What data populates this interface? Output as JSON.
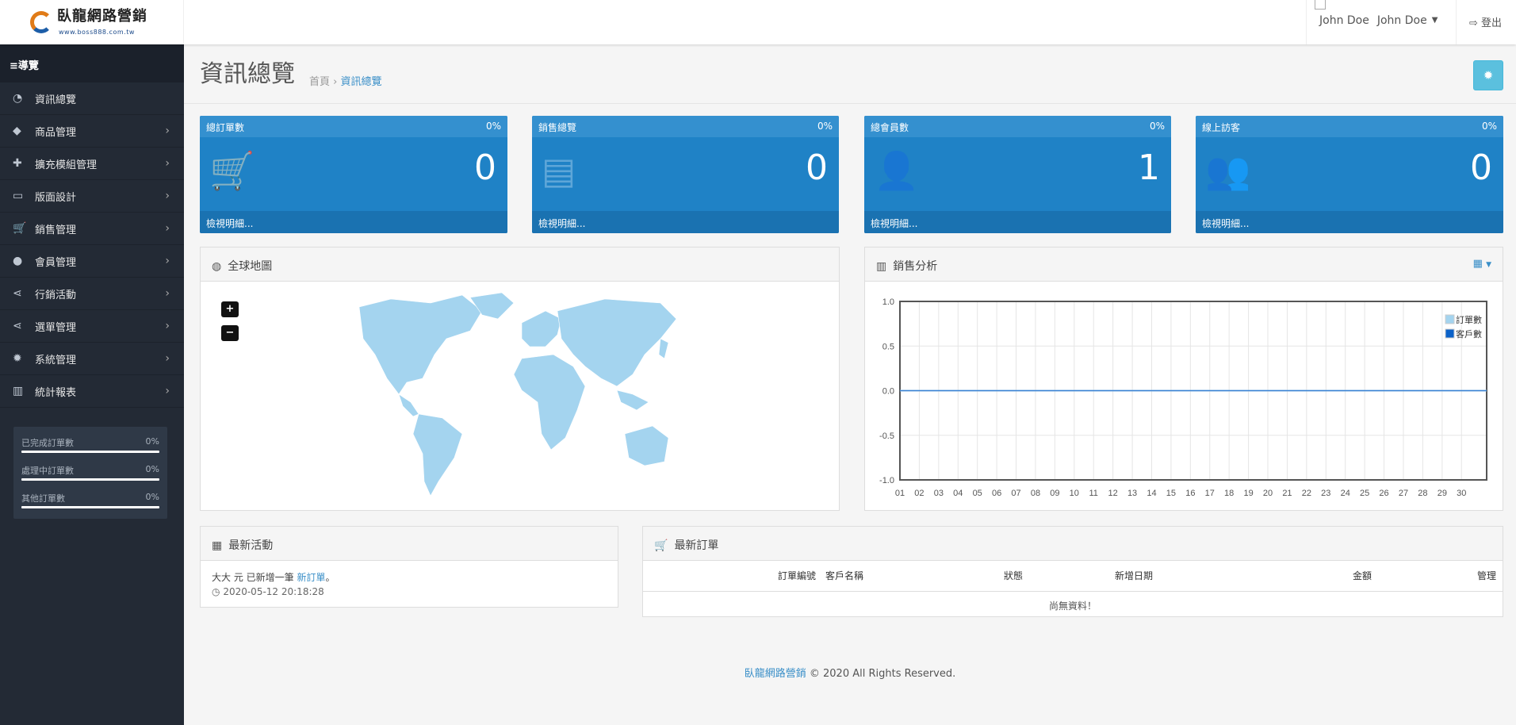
{
  "brand": {
    "name": "臥龍網路營銷",
    "url": "www.boss888.com.tw"
  },
  "header": {
    "user_name": "John Doe",
    "user_menu": "John Doe",
    "logout": "登出"
  },
  "sidebar": {
    "title": "導覽",
    "items": [
      {
        "label": "資訊總覽",
        "icon": "dashboard-icon",
        "glyph": "◔",
        "chevron": false
      },
      {
        "label": "商品管理",
        "icon": "tags-icon",
        "glyph": "◆",
        "chevron": true
      },
      {
        "label": "擴充模組管理",
        "icon": "puzzle-icon",
        "glyph": "✚",
        "chevron": true
      },
      {
        "label": "版面設計",
        "icon": "desktop-icon",
        "glyph": "▭",
        "chevron": true
      },
      {
        "label": "銷售管理",
        "icon": "cart-icon",
        "glyph": "🛒",
        "chevron": true
      },
      {
        "label": "會員管理",
        "icon": "user-icon",
        "glyph": "●",
        "chevron": true
      },
      {
        "label": "行銷活動",
        "icon": "share-icon",
        "glyph": "⋖",
        "chevron": true
      },
      {
        "label": "選單管理",
        "icon": "share-icon",
        "glyph": "⋖",
        "chevron": true
      },
      {
        "label": "系統管理",
        "icon": "gear-icon",
        "glyph": "✹",
        "chevron": true
      },
      {
        "label": "統計報表",
        "icon": "bar-chart-icon",
        "glyph": "▥",
        "chevron": true
      }
    ],
    "progress": [
      {
        "label": "已完成訂單數",
        "value": "0%"
      },
      {
        "label": "處理中訂單數",
        "value": "0%"
      },
      {
        "label": "其他訂單數",
        "value": "0%"
      }
    ]
  },
  "page": {
    "title": "資訊總覽",
    "breadcrumb": [
      "首頁",
      "資訊總覽"
    ]
  },
  "cards": [
    {
      "title": "總訂單數",
      "percent": "0%",
      "value": "0",
      "icon": "cart-icon",
      "glyph": "🛒",
      "link": "檢視明細..."
    },
    {
      "title": "銷售總覽",
      "percent": "0%",
      "value": "0",
      "icon": "credit-card-icon",
      "glyph": "▤",
      "link": "檢視明細..."
    },
    {
      "title": "總會員數",
      "percent": "0%",
      "value": "1",
      "icon": "user-icon",
      "glyph": "👤",
      "link": "檢視明細..."
    },
    {
      "title": "線上訪客",
      "percent": "0%",
      "value": "0",
      "icon": "users-icon",
      "glyph": "👥",
      "link": "檢視明細..."
    }
  ],
  "map": {
    "title": "全球地圖",
    "zoom_in": "+",
    "zoom_out": "−",
    "land_color": "#a4d4ef"
  },
  "chart_panel": {
    "title": "銷售分析"
  },
  "chart_data": {
    "type": "line",
    "categories": [
      "01",
      "02",
      "03",
      "04",
      "05",
      "06",
      "07",
      "08",
      "09",
      "10",
      "11",
      "12",
      "13",
      "14",
      "15",
      "16",
      "17",
      "18",
      "19",
      "20",
      "21",
      "22",
      "23",
      "24",
      "25",
      "26",
      "27",
      "28",
      "29",
      "30"
    ],
    "series": [
      {
        "name": "訂單數",
        "color": "#a4d4ef",
        "values": [
          0,
          0,
          0,
          0,
          0,
          0,
          0,
          0,
          0,
          0,
          0,
          0,
          0,
          0,
          0,
          0,
          0,
          0,
          0,
          0,
          0,
          0,
          0,
          0,
          0,
          0,
          0,
          0,
          0,
          0
        ]
      },
      {
        "name": "客戶數",
        "color": "#0b62c9",
        "values": [
          0,
          0,
          0,
          0,
          0,
          0,
          0,
          0,
          0,
          0,
          0,
          0,
          0,
          0,
          0,
          0,
          0,
          0,
          0,
          0,
          0,
          0,
          0,
          0,
          0,
          0,
          0,
          0,
          0,
          0
        ]
      }
    ],
    "ylim": [
      -1,
      1
    ],
    "yticks": [
      "1.0",
      "0.5",
      "0.0",
      "-0.5",
      "-1.0"
    ],
    "grid": true,
    "legend": "top-right"
  },
  "activity": {
    "title": "最新活動",
    "items": [
      {
        "text": "大大 元 已新增一筆 ",
        "link": "新訂單",
        "suffix": "。",
        "time": "2020-05-12 20:18:28"
      }
    ]
  },
  "orders": {
    "title": "最新訂單",
    "columns": [
      "訂單編號",
      "客戶名稱",
      "狀態",
      "新增日期",
      "金額",
      "管理"
    ],
    "empty": "尚無資料！"
  },
  "footer": {
    "brand": "臥龍網路營銷",
    "text": " © 2020 All Rights Reserved."
  }
}
